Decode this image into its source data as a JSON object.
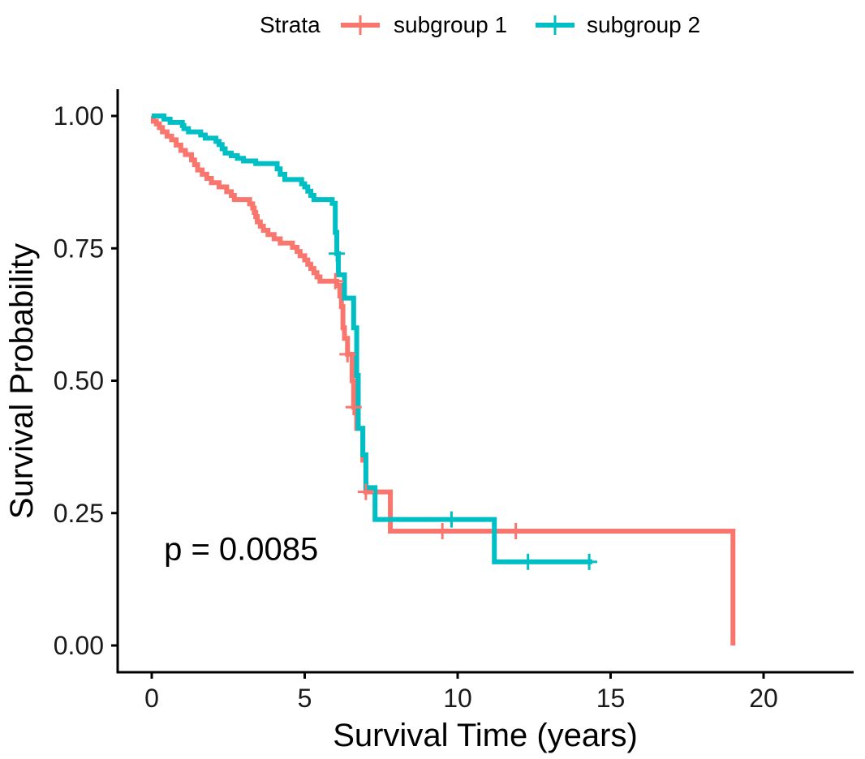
{
  "chart_data": {
    "type": "line",
    "subtype": "kaplan-meier-step",
    "xlabel": "Survival Time (years)",
    "ylabel": "Survival Probability",
    "xlim": [
      -1,
      23
    ],
    "ylim": [
      -0.05,
      1.05
    ],
    "xticks": [
      0,
      5,
      10,
      15,
      20
    ],
    "yticks": [
      0,
      0.25,
      0.5,
      0.75,
      1
    ],
    "ytick_labels": [
      "0.00",
      "0.25",
      "0.50",
      "0.75",
      "1.00"
    ],
    "grid": false,
    "legend": {
      "title": "Strata",
      "position": "top",
      "entries": [
        "subgroup 1",
        "subgroup 2"
      ]
    },
    "annotation": {
      "text": "p = 0.0085",
      "x": 0.4,
      "y": 0.18
    },
    "series": [
      {
        "name": "subgroup 1",
        "color": "#F8766D",
        "steps": [
          [
            0,
            1.0
          ],
          [
            0.05,
            0.99
          ],
          [
            0.15,
            0.985
          ],
          [
            0.25,
            0.978
          ],
          [
            0.35,
            0.97
          ],
          [
            0.5,
            0.962
          ],
          [
            0.65,
            0.955
          ],
          [
            0.8,
            0.945
          ],
          [
            0.95,
            0.935
          ],
          [
            1.1,
            0.927
          ],
          [
            1.3,
            0.917
          ],
          [
            1.4,
            0.908
          ],
          [
            1.5,
            0.898
          ],
          [
            1.65,
            0.89
          ],
          [
            1.8,
            0.882
          ],
          [
            1.95,
            0.874
          ],
          [
            2.2,
            0.866
          ],
          [
            2.45,
            0.857
          ],
          [
            2.6,
            0.85
          ],
          [
            2.7,
            0.842
          ],
          [
            3.2,
            0.834
          ],
          [
            3.3,
            0.826
          ],
          [
            3.35,
            0.818
          ],
          [
            3.4,
            0.81
          ],
          [
            3.45,
            0.8
          ],
          [
            3.55,
            0.792
          ],
          [
            3.65,
            0.784
          ],
          [
            3.8,
            0.776
          ],
          [
            4.0,
            0.768
          ],
          [
            4.2,
            0.76
          ],
          [
            4.6,
            0.752
          ],
          [
            4.75,
            0.744
          ],
          [
            4.85,
            0.736
          ],
          [
            5.0,
            0.728
          ],
          [
            5.1,
            0.72
          ],
          [
            5.2,
            0.712
          ],
          [
            5.3,
            0.704
          ],
          [
            5.4,
            0.696
          ],
          [
            5.5,
            0.688
          ],
          [
            6.05,
            0.68
          ],
          [
            6.15,
            0.66
          ],
          [
            6.2,
            0.64
          ],
          [
            6.25,
            0.6
          ],
          [
            6.3,
            0.58
          ],
          [
            6.4,
            0.55
          ],
          [
            6.55,
            0.5
          ],
          [
            6.6,
            0.45
          ],
          [
            6.7,
            0.41
          ],
          [
            6.9,
            0.35
          ],
          [
            7.0,
            0.29
          ],
          [
            7.8,
            0.216
          ],
          [
            19.0,
            0.0
          ]
        ],
        "end_time": 19.0,
        "censor_times": [
          6.0,
          6.4,
          6.6,
          7.0,
          9.5,
          11.9
        ]
      },
      {
        "name": "subgroup 2",
        "color": "#00BFC4",
        "steps": [
          [
            0,
            1.0
          ],
          [
            0.4,
            0.994
          ],
          [
            0.6,
            0.988
          ],
          [
            1.0,
            0.982
          ],
          [
            1.05,
            0.976
          ],
          [
            1.2,
            0.97
          ],
          [
            1.6,
            0.964
          ],
          [
            1.75,
            0.958
          ],
          [
            2.1,
            0.952
          ],
          [
            2.2,
            0.946
          ],
          [
            2.3,
            0.938
          ],
          [
            2.4,
            0.93
          ],
          [
            2.6,
            0.925
          ],
          [
            2.8,
            0.92
          ],
          [
            3.0,
            0.915
          ],
          [
            3.4,
            0.91
          ],
          [
            4.1,
            0.9
          ],
          [
            4.2,
            0.89
          ],
          [
            4.35,
            0.88
          ],
          [
            4.9,
            0.872
          ],
          [
            5.0,
            0.866
          ],
          [
            5.1,
            0.858
          ],
          [
            5.2,
            0.85
          ],
          [
            5.3,
            0.842
          ],
          [
            5.9,
            0.835
          ],
          [
            6.0,
            0.78
          ],
          [
            6.05,
            0.74
          ],
          [
            6.1,
            0.7
          ],
          [
            6.3,
            0.656
          ],
          [
            6.6,
            0.6
          ],
          [
            6.7,
            0.51
          ],
          [
            6.75,
            0.41
          ],
          [
            6.9,
            0.36
          ],
          [
            7.0,
            0.298
          ],
          [
            7.3,
            0.238
          ],
          [
            11.2,
            0.158
          ]
        ],
        "end_time": 14.4,
        "censor_times": [
          6.05,
          9.8,
          12.3,
          14.3
        ]
      }
    ]
  }
}
